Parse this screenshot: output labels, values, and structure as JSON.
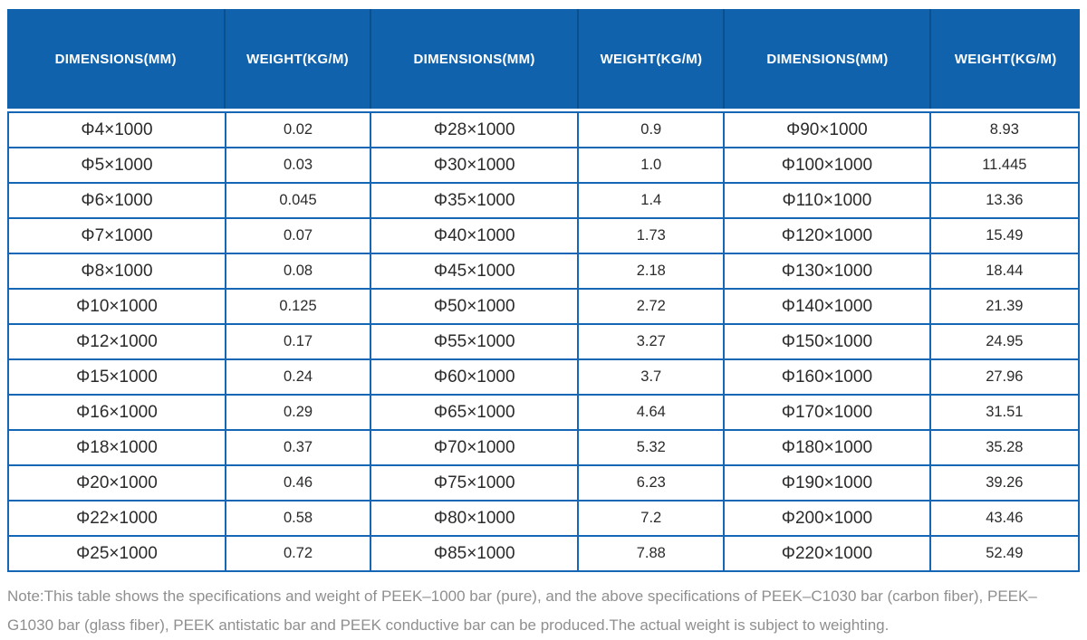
{
  "table": {
    "header_labels": [
      "DIMENSIONS(MM)",
      "WEIGHT(KG/M)",
      "DIMENSIONS(MM)",
      "WEIGHT(KG/M)",
      "DIMENSIONS(MM)",
      "WEIGHT(KG/M)"
    ],
    "rows": [
      [
        "Φ4×1000",
        "0.02",
        "Φ28×1000",
        "0.9",
        "Φ90×1000",
        "8.93"
      ],
      [
        "Φ5×1000",
        "0.03",
        "Φ30×1000",
        "1.0",
        "Φ100×1000",
        "11.445"
      ],
      [
        "Φ6×1000",
        "0.045",
        "Φ35×1000",
        "1.4",
        "Φ110×1000",
        "13.36"
      ],
      [
        "Φ7×1000",
        "0.07",
        "Φ40×1000",
        "1.73",
        "Φ120×1000",
        "15.49"
      ],
      [
        "Φ8×1000",
        "0.08",
        "Φ45×1000",
        "2.18",
        "Φ130×1000",
        "18.44"
      ],
      [
        "Φ10×1000",
        "0.125",
        "Φ50×1000",
        "2.72",
        "Φ140×1000",
        "21.39"
      ],
      [
        "Φ12×1000",
        "0.17",
        "Φ55×1000",
        "3.27",
        "Φ150×1000",
        "24.95"
      ],
      [
        "Φ15×1000",
        "0.24",
        "Φ60×1000",
        "3.7",
        "Φ160×1000",
        "27.96"
      ],
      [
        "Φ16×1000",
        "0.29",
        "Φ65×1000",
        "4.64",
        "Φ170×1000",
        "31.51"
      ],
      [
        "Φ18×1000",
        "0.37",
        "Φ70×1000",
        "5.32",
        "Φ180×1000",
        "35.28"
      ],
      [
        "Φ20×1000",
        "0.46",
        "Φ75×1000",
        "6.23",
        "Φ190×1000",
        "39.26"
      ],
      [
        "Φ22×1000",
        "0.58",
        "Φ80×1000",
        "7.2",
        "Φ200×1000",
        "43.46"
      ],
      [
        "Φ25×1000",
        "0.72",
        "Φ85×1000",
        "7.88",
        "Φ220×1000",
        "52.49"
      ]
    ]
  },
  "note": {
    "text": "Note:This table shows the specifications and weight of PEEK–1000 bar (pure), and the above specifications of PEEK–C1030 bar (carbon fiber), PEEK–G1030 bar (glass fiber), PEEK antistatic bar and PEEK conductive bar can be produced.The actual weight is subject to weighting."
  },
  "colors": {
    "header_bg": "#0f62ab",
    "header_divider": "#0a4f8e",
    "body_border": "#1566b5",
    "body_text": "#2b2b2b",
    "note_text": "#8f8f8f"
  }
}
